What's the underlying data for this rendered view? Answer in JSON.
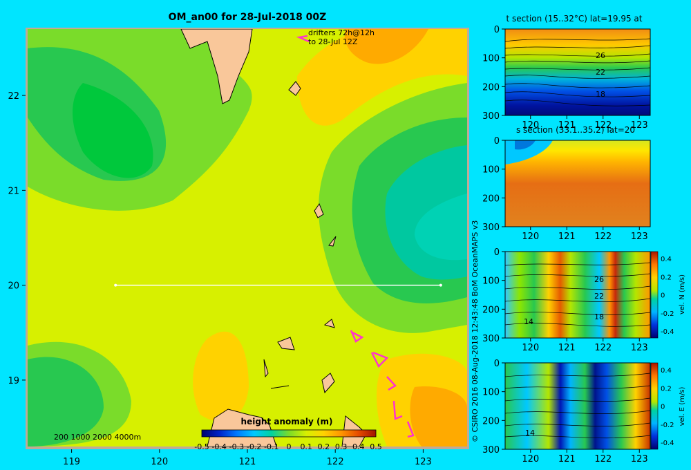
{
  "chart_data": [
    {
      "type": "heatmap",
      "title": "OM_an00 for 28-Jul-2018 00Z",
      "x_ticks": [
        119,
        120,
        121,
        122,
        123
      ],
      "y_ticks": [
        19,
        20,
        21,
        22
      ],
      "xlim": [
        118.5,
        123.5
      ],
      "ylim": [
        18.3,
        22.7
      ],
      "annotation_lines": [
        "drifters 72h@12h",
        "to 28-Jul 12Z"
      ],
      "depth_scale_label": "200  1000  2000  4000m",
      "section_line": {
        "lat": 20,
        "lon_start": 119.5,
        "lon_end": 123.2
      },
      "colorbar": {
        "label": "height anomaly  (m)",
        "ticks": [
          "-0.5",
          "-0.4",
          "-0.3",
          "-0.2",
          "-0.1",
          "0",
          "0.1",
          "0.2",
          "0.3",
          "0.4",
          "0.5"
        ],
        "range": [
          -0.5,
          0.5
        ]
      }
    },
    {
      "type": "heatmap",
      "title": "t section (15..32°C) lat=19.95 at",
      "x_ticks": [
        120,
        121,
        122,
        123
      ],
      "y_ticks": [
        0,
        100,
        200,
        300
      ],
      "contour_labels": [
        "26",
        "22",
        "18"
      ]
    },
    {
      "type": "heatmap",
      "title": "s section (33.1..35.2) lat=20",
      "x_ticks": [
        120,
        121,
        122,
        123
      ],
      "y_ticks": [
        0,
        100,
        200,
        300
      ]
    },
    {
      "type": "heatmap",
      "title": "",
      "x_ticks": [
        120,
        121,
        122,
        123
      ],
      "y_ticks": [
        0,
        100,
        200,
        300
      ],
      "contour_labels": [
        "26",
        "22",
        "18",
        "14"
      ],
      "colorbar": {
        "label": "vel. N  (m/s)",
        "ticks": [
          "0.4",
          "0.2",
          "0",
          "-0.2",
          "-0.4"
        ],
        "range": [
          -0.4,
          0.4
        ]
      }
    },
    {
      "type": "heatmap",
      "title": "",
      "x_ticks": [
        120,
        121,
        122,
        123
      ],
      "y_ticks": [
        0,
        100,
        200,
        300
      ],
      "contour_labels": [
        "14"
      ],
      "colorbar": {
        "label": "vel. E  (m/s)",
        "ticks": [
          "0.4",
          "0.2",
          "0",
          "-0.2",
          "-0.4"
        ],
        "range": [
          -0.4,
          0.4
        ]
      }
    }
  ],
  "credit": "© CSIRO 2016   08-Aug-2018 12:43:48 BoM OceanMAPS v3",
  "colors": {
    "background": "#00e5ff",
    "land": "#f9c79a",
    "shelf": "#c0aa96",
    "drifter": "#ff33cc"
  }
}
